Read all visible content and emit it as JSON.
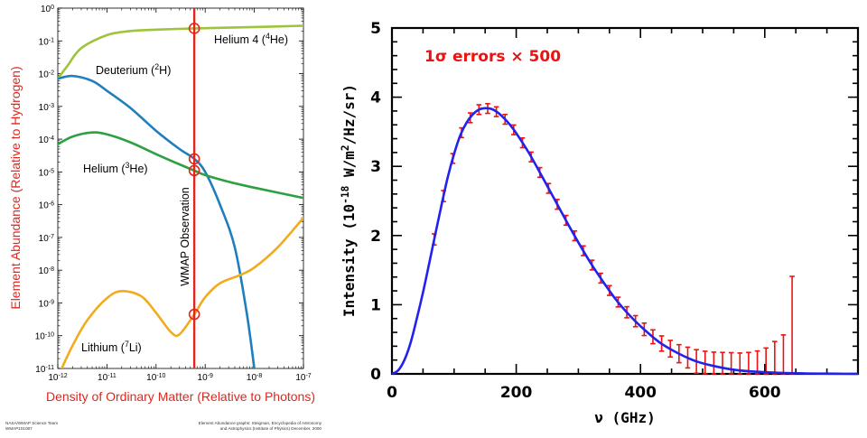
{
  "chart_data": [
    {
      "type": "line",
      "xlabel": "Density of Ordinary Matter (Relative to Photons)",
      "ylabel": "Element Abundance (Relative to Hydrogen)",
      "xscale": "log",
      "yscale": "log",
      "xlim": [
        1e-12,
        1e-07
      ],
      "ylim": [
        1e-11,
        1
      ],
      "x_ticks": [
        "10-12",
        "10-11",
        "10-10",
        "10-9",
        "10-8",
        "10-7"
      ],
      "y_ticks": [
        "100",
        "10-1",
        "10-2",
        "10-3",
        "10-4",
        "10-5",
        "10-6",
        "10-7",
        "10-8",
        "10-9",
        "10-10",
        "10-11"
      ],
      "series": [
        {
          "name": "Helium 4 (4He)",
          "color": "#9cc43c",
          "x": [
            1e-12,
            1.6e-12,
            3e-12,
            1e-11,
            3e-11,
            1e-10,
            6e-10,
            3e-09,
            1e-08,
            1e-07
          ],
          "y": [
            0.007,
            0.018,
            0.06,
            0.15,
            0.2,
            0.22,
            0.24,
            0.255,
            0.265,
            0.29
          ]
        },
        {
          "name": "Deuterium (2H)",
          "color": "#1f7fbd",
          "x": [
            1e-12,
            2e-12,
            5e-12,
            1e-11,
            3e-11,
            1e-10,
            3e-10,
            6e-10,
            1e-09,
            2e-09,
            4e-09,
            7e-09,
            1e-08
          ],
          "y": [
            0.007,
            0.0085,
            0.006,
            0.003,
            0.0009,
            0.00018,
            5e-05,
            2.5e-05,
            1e-05,
            1e-06,
            5e-08,
            5e-10,
            1e-11
          ]
        },
        {
          "name": "Helium (3He)",
          "color": "#2ea043",
          "x": [
            1e-12,
            2e-12,
            5e-12,
            1e-11,
            3e-11,
            1e-10,
            3e-10,
            6e-10,
            1e-09,
            3e-09,
            1e-08,
            1e-07
          ],
          "y": [
            7e-05,
            0.00012,
            0.00016,
            0.00014,
            8e-05,
            3.5e-05,
            1.7e-05,
            1.1e-05,
            8e-06,
            5e-06,
            3.3e-06,
            1.6e-06
          ]
        },
        {
          "name": "Lithium (7Li)",
          "color": "#f0ac1c",
          "x": [
            1.2e-12,
            2e-12,
            4e-12,
            1e-11,
            2e-11,
            5e-11,
            1e-10,
            2e-10,
            3e-10,
            6e-10,
            1e-09,
            2e-09,
            5e-09,
            1e-08,
            3e-08,
            1e-07
          ],
          "y": [
            1e-11,
            5e-11,
            3e-10,
            1.4e-09,
            2.3e-09,
            1.6e-09,
            5e-10,
            1.3e-10,
            1.1e-10,
            4.5e-10,
            1.5e-09,
            4e-09,
            7e-09,
            1.2e-08,
            5e-08,
            4e-07
          ]
        }
      ],
      "vline": {
        "x": 6e-10,
        "label": "WMAP Observation",
        "color": "#e0261e"
      },
      "markers": [
        {
          "x": 6e-10,
          "y": 0.24
        },
        {
          "x": 6e-10,
          "y": 2.5e-05
        },
        {
          "x": 6e-10,
          "y": 1.1e-05
        },
        {
          "x": 6e-10,
          "y": 4.5e-10
        }
      ],
      "credits": {
        "left_line1": "NASA/WMAP Science Team",
        "left_line2": "WMAP101087",
        "right_line1": "Element Abundance graphs: Steigman, Encyclopedia of Astronomy",
        "right_line2": "and Astrophysics (Institute of Physics) December, 2000"
      }
    },
    {
      "type": "line",
      "xlabel": "ν (GHz)",
      "ylabel": "Intensity (10-18 W/m2/Hz/sr)",
      "xlim": [
        0,
        750
      ],
      "ylim": [
        0,
        5
      ],
      "x_ticks": [
        0,
        200,
        400,
        600
      ],
      "y_ticks": [
        0,
        1,
        2,
        3,
        4,
        5
      ],
      "annotation": "1σ errors × 500",
      "curve_color": "#2222ee",
      "error_color": "#ee1111",
      "series": [
        {
          "name": "",
          "x": [
            0,
            10,
            20,
            30,
            40,
            50,
            60,
            70,
            80,
            90,
            100,
            110,
            120,
            130,
            140,
            150,
            160,
            170,
            180,
            190,
            200,
            220,
            240,
            260,
            280,
            300,
            320,
            340,
            360,
            380,
            400,
            430,
            460,
            490,
            520,
            550,
            580,
            610,
            640,
            680,
            720,
            750
          ],
          "y": [
            0,
            0.05,
            0.2,
            0.45,
            0.8,
            1.18,
            1.6,
            2.03,
            2.45,
            2.85,
            3.18,
            3.45,
            3.63,
            3.75,
            3.82,
            3.84,
            3.83,
            3.78,
            3.7,
            3.6,
            3.48,
            3.2,
            2.88,
            2.55,
            2.22,
            1.9,
            1.6,
            1.33,
            1.08,
            0.87,
            0.69,
            0.46,
            0.3,
            0.18,
            0.11,
            0.06,
            0.035,
            0.02,
            0.01,
            0.005,
            0.002,
            0.001
          ]
        }
      ],
      "error_points": {
        "x": [
          68,
          83,
          98,
          112,
          126,
          140,
          154,
          168,
          182,
          196,
          210,
          224,
          238,
          252,
          266,
          280,
          294,
          308,
          322,
          336,
          350,
          364,
          378,
          392,
          406,
          420,
          434,
          448,
          462,
          476,
          490,
          504,
          518,
          532,
          546,
          560,
          574,
          588,
          602,
          616,
          630,
          644
        ],
        "errors": [
          0.08,
          0.08,
          0.07,
          0.07,
          0.07,
          0.07,
          0.07,
          0.07,
          0.07,
          0.07,
          0.07,
          0.07,
          0.07,
          0.07,
          0.07,
          0.07,
          0.07,
          0.07,
          0.07,
          0.07,
          0.07,
          0.07,
          0.08,
          0.08,
          0.09,
          0.1,
          0.11,
          0.12,
          0.13,
          0.15,
          0.17,
          0.18,
          0.2,
          0.22,
          0.24,
          0.25,
          0.27,
          0.3,
          0.35,
          0.45,
          0.55,
          1.4
        ]
      }
    }
  ]
}
